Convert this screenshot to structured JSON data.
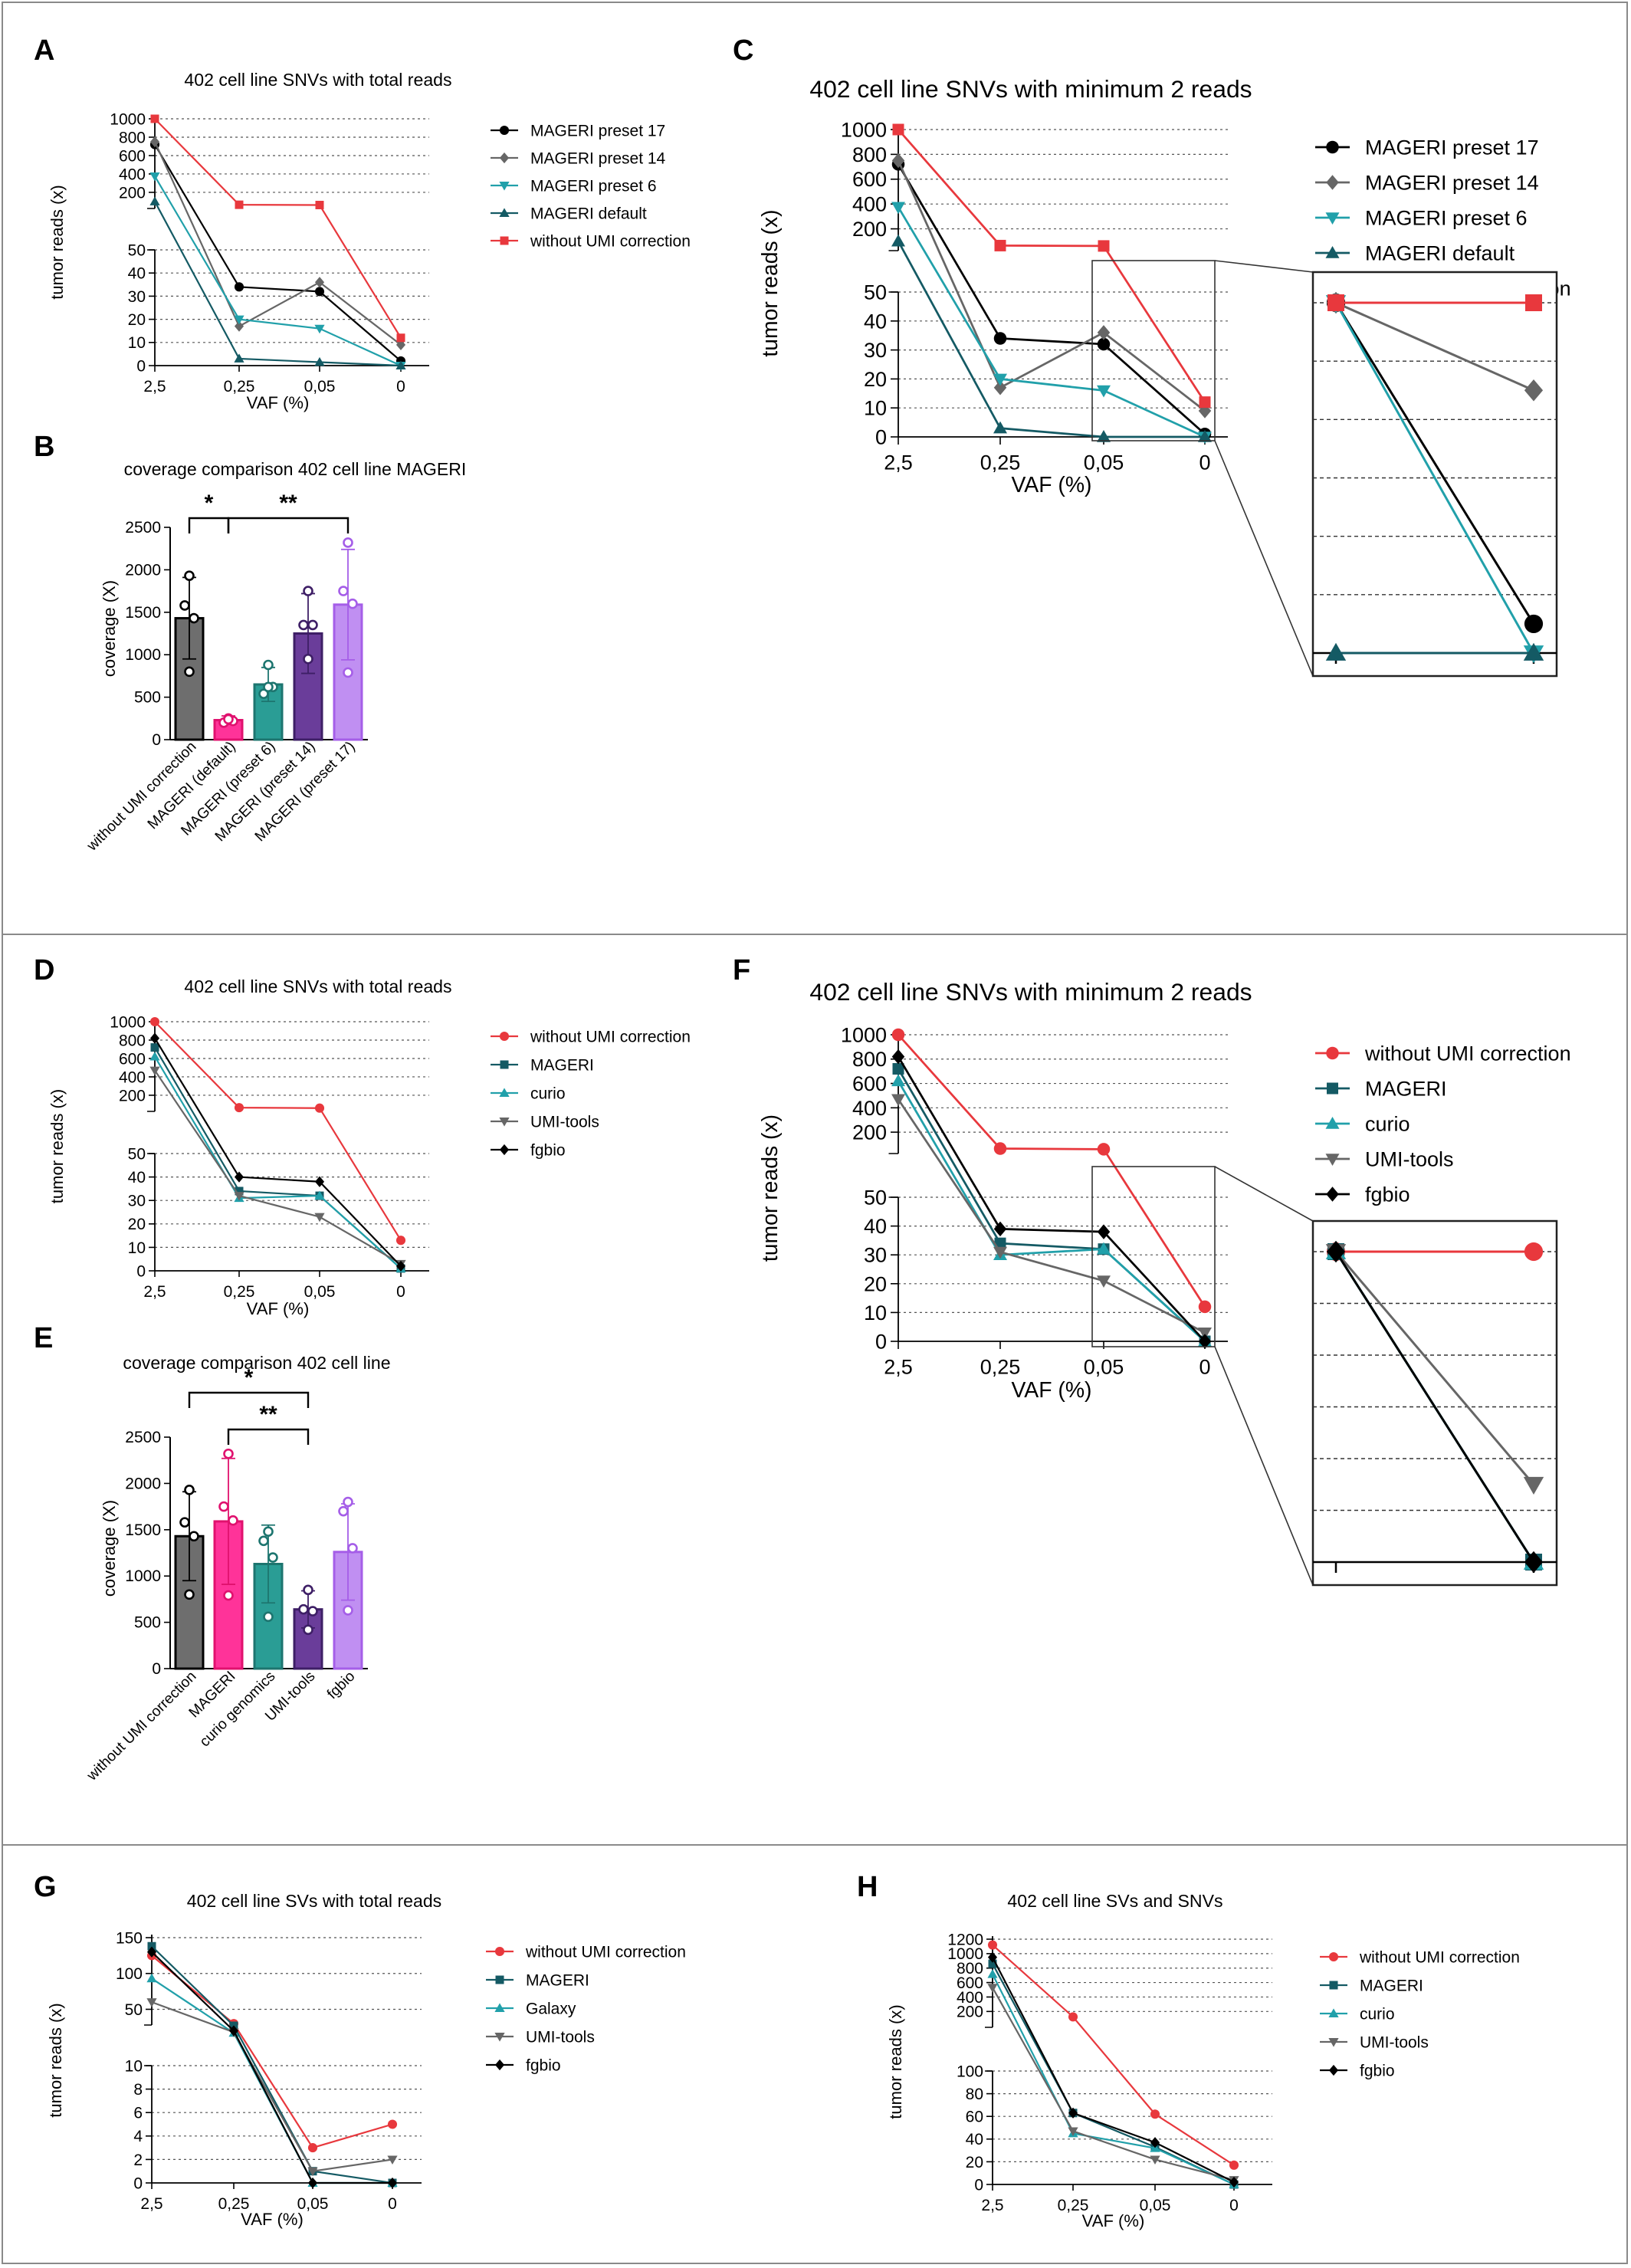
{
  "panels": {
    "A": "A",
    "B": "B",
    "C": "C",
    "D": "D",
    "E": "E",
    "F": "F",
    "G": "G",
    "H": "H"
  },
  "chart_data": [
    {
      "id": "A",
      "type": "line",
      "title": "402 cell line SNVs with total reads",
      "xlabel": "VAF (%)",
      "ylabel": "tumor reads (x)",
      "categories": [
        "2,5",
        "0,25",
        "0,05",
        "0"
      ],
      "y_axis_broken": true,
      "lower_ticks": [
        "0",
        "10",
        "20",
        "30",
        "40",
        "50"
      ],
      "upper_ticks": [
        "200",
        "400",
        "600",
        "800",
        "1000"
      ],
      "series": [
        {
          "name": "MAGERI preset 17",
          "color": "#000000",
          "marker": "circle",
          "values": [
            720,
            34,
            32,
            2
          ]
        },
        {
          "name": "MAGERI preset 14",
          "color": "#666666",
          "marker": "diamond",
          "values": [
            750,
            17,
            36,
            9
          ]
        },
        {
          "name": "MAGERI preset 6",
          "color": "#21a0aa",
          "marker": "triangle-down",
          "values": [
            375,
            20,
            16,
            0
          ]
        },
        {
          "name": "MAGERI default",
          "color": "#145a64",
          "marker": "triangle-up",
          "values": [
            100,
            3,
            1.5,
            0
          ]
        },
        {
          "name": "without UMI correction",
          "color": "#e8383d",
          "marker": "square",
          "values": [
            1000,
            65,
            62,
            12
          ]
        }
      ]
    },
    {
      "id": "B",
      "type": "bar",
      "title": "coverage comparison 402 cell line MAGERI",
      "ylabel": "coverage (X)",
      "yticks": [
        "0",
        "500",
        "1000",
        "1500",
        "2000",
        "2500"
      ],
      "ylim": [
        0,
        2500
      ],
      "categories": [
        "without UMI correction",
        "MAGERI (default)",
        "MAGERI (preset 6)",
        "MAGERI (preset 14)",
        "MAGERI (preset 17)"
      ],
      "values": [
        1430,
        230,
        650,
        1250,
        1590
      ],
      "errors": [
        480,
        50,
        200,
        470,
        650
      ],
      "points": [
        [
          1930,
          1580,
          1430,
          800
        ],
        [
          250,
          200,
          220,
          240
        ],
        [
          880,
          540,
          620,
          620
        ],
        [
          1750,
          1350,
          1350,
          950
        ],
        [
          2320,
          1750,
          1600,
          790
        ]
      ],
      "colors": [
        "#6e6e6e",
        "#ff3399",
        "#2a9d95",
        "#6a3d9a",
        "#c08ff2"
      ],
      "edge_colors": [
        "#000000",
        "#e0116e",
        "#1d756f",
        "#3e1f66",
        "#a55ee8"
      ],
      "significance": [
        {
          "label": "*",
          "from": 0,
          "to": 1
        },
        {
          "label": "**",
          "from": 1,
          "to": 4
        }
      ]
    },
    {
      "id": "C",
      "type": "line",
      "title": "402 cell line SNVs with minimum 2 reads",
      "xlabel": "VAF (%)",
      "ylabel": "tumor reads (x)",
      "categories": [
        "2,5",
        "0,25",
        "0,05",
        "0"
      ],
      "y_axis_broken": true,
      "lower_ticks": [
        "0",
        "10",
        "20",
        "30",
        "40",
        "50"
      ],
      "upper_ticks": [
        "200",
        "400",
        "600",
        "800",
        "1000"
      ],
      "series": [
        {
          "name": "MAGERI preset 17",
          "color": "#000000",
          "marker": "circle",
          "values": [
            720,
            34,
            32,
            1
          ]
        },
        {
          "name": "MAGERI preset 14",
          "color": "#666666",
          "marker": "diamond",
          "values": [
            750,
            17,
            36,
            9
          ]
        },
        {
          "name": "MAGERI preset 6",
          "color": "#21a0aa",
          "marker": "triangle-down",
          "values": [
            375,
            20,
            16,
            0
          ]
        },
        {
          "name": "MAGERI default",
          "color": "#145a64",
          "marker": "triangle-up",
          "values": [
            100,
            3,
            0,
            0
          ]
        },
        {
          "name": "without UMI correction",
          "color": "#e8383d",
          "marker": "square",
          "values": [
            1000,
            65,
            62,
            12
          ]
        }
      ]
    },
    {
      "id": "D",
      "type": "line",
      "title": "402 cell line SNVs with total reads",
      "xlabel": "VAF (%)",
      "ylabel": "tumor reads (x)",
      "categories": [
        "2,5",
        "0,25",
        "0,05",
        "0"
      ],
      "y_axis_broken": true,
      "lower_ticks": [
        "0",
        "10",
        "20",
        "30",
        "40",
        "50"
      ],
      "upper_ticks": [
        "200",
        "400",
        "600",
        "800",
        "1000"
      ],
      "series": [
        {
          "name": "without UMI correction",
          "color": "#e8383d",
          "marker": "circle",
          "values": [
            1000,
            65,
            60,
            13
          ]
        },
        {
          "name": "MAGERI",
          "color": "#145a64",
          "marker": "square",
          "values": [
            720,
            34,
            32,
            1
          ]
        },
        {
          "name": "curio",
          "color": "#21a0aa",
          "marker": "triangle-up",
          "values": [
            620,
            31,
            32,
            1
          ]
        },
        {
          "name": "UMI-tools",
          "color": "#666666",
          "marker": "triangle-down",
          "values": [
            470,
            32,
            23,
            3
          ]
        },
        {
          "name": "fgbio",
          "color": "#000000",
          "marker": "diamond",
          "values": [
            820,
            40,
            38,
            2
          ]
        }
      ]
    },
    {
      "id": "E",
      "type": "bar",
      "title": "coverage comparison 402 cell line",
      "ylabel": "coverage (X)",
      "yticks": [
        "0",
        "500",
        "1000",
        "1500",
        "2000",
        "2500"
      ],
      "ylim": [
        0,
        2500
      ],
      "categories": [
        "without UMI correction",
        "MAGERI",
        "curio genomics",
        "UMI-tools",
        "fgbio"
      ],
      "values": [
        1430,
        1590,
        1130,
        640,
        1260
      ],
      "errors": [
        480,
        680,
        420,
        200,
        520
      ],
      "points": [
        [
          1930,
          1580,
          1430,
          800
        ],
        [
          2320,
          1750,
          1600,
          790
        ],
        [
          1480,
          1380,
          1200,
          560
        ],
        [
          850,
          640,
          620,
          420
        ],
        [
          1800,
          1700,
          1300,
          630
        ]
      ],
      "colors": [
        "#6e6e6e",
        "#ff3399",
        "#2a9d95",
        "#6a3d9a",
        "#c08ff2"
      ],
      "edge_colors": [
        "#000000",
        "#e0116e",
        "#1d756f",
        "#3e1f66",
        "#a55ee8"
      ],
      "significance": [
        {
          "label": "*",
          "from": 0,
          "to": 3
        },
        {
          "label": "**",
          "from": 1,
          "to": 3
        }
      ]
    },
    {
      "id": "F",
      "type": "line",
      "title": "402 cell line SNVs with minimum 2 reads",
      "xlabel": "VAF (%)",
      "ylabel": "tumor reads (x)",
      "categories": [
        "2,5",
        "0,25",
        "0,05",
        "0"
      ],
      "y_axis_broken": true,
      "lower_ticks": [
        "0",
        "10",
        "20",
        "30",
        "40",
        "50"
      ],
      "upper_ticks": [
        "200",
        "400",
        "600",
        "800",
        "1000"
      ],
      "series": [
        {
          "name": "without UMI correction",
          "color": "#e8383d",
          "marker": "circle",
          "values": [
            1000,
            65,
            60,
            12
          ]
        },
        {
          "name": "MAGERI",
          "color": "#145a64",
          "marker": "square",
          "values": [
            720,
            34,
            32,
            0
          ]
        },
        {
          "name": "curio",
          "color": "#21a0aa",
          "marker": "triangle-up",
          "values": [
            620,
            30,
            32,
            0
          ]
        },
        {
          "name": "UMI-tools",
          "color": "#666666",
          "marker": "triangle-down",
          "values": [
            470,
            31,
            21,
            3
          ]
        },
        {
          "name": "fgbio",
          "color": "#000000",
          "marker": "diamond",
          "values": [
            820,
            39,
            38,
            0
          ]
        }
      ]
    },
    {
      "id": "G",
      "type": "line",
      "title": "402 cell line SVs with total reads",
      "xlabel": "VAF (%)",
      "ylabel": "tumor reads (x)",
      "categories": [
        "2,5",
        "0,25",
        "0,05",
        "0"
      ],
      "y_axis_broken": true,
      "lower_ticks": [
        "0",
        "2",
        "4",
        "6",
        "8",
        "10"
      ],
      "upper_ticks": [
        "50",
        "100",
        "150"
      ],
      "series": [
        {
          "name": "without UMI correction",
          "color": "#e8383d",
          "marker": "circle",
          "values": [
            125,
            30,
            3,
            5
          ]
        },
        {
          "name": "MAGERI",
          "color": "#145a64",
          "marker": "square",
          "values": [
            138,
            27,
            1,
            0
          ]
        },
        {
          "name": "Galaxy",
          "color": "#21a0aa",
          "marker": "triangle-up",
          "values": [
            93,
            17,
            0,
            0
          ]
        },
        {
          "name": "UMI-tools",
          "color": "#666666",
          "marker": "triangle-down",
          "values": [
            60,
            18,
            1,
            2
          ]
        },
        {
          "name": "fgbio",
          "color": "#000000",
          "marker": "diamond",
          "values": [
            130,
            20,
            0,
            0
          ]
        }
      ]
    },
    {
      "id": "H",
      "type": "line",
      "title": "402 cell line SVs and SNVs",
      "xlabel": "VAF (%)",
      "ylabel": "tumor reads (x)",
      "categories": [
        "2,5",
        "0,25",
        "0,05",
        "0"
      ],
      "y_axis_broken": true,
      "lower_ticks": [
        "0",
        "20",
        "40",
        "60",
        "80",
        "100"
      ],
      "upper_ticks": [
        "200",
        "400",
        "600",
        "800",
        "1000",
        "1200"
      ],
      "series": [
        {
          "name": "without UMI correction",
          "color": "#e8383d",
          "marker": "circle",
          "values": [
            1120,
            125,
            62,
            17
          ]
        },
        {
          "name": "MAGERI",
          "color": "#145a64",
          "marker": "square",
          "values": [
            860,
            63,
            33,
            0
          ]
        },
        {
          "name": "curio",
          "color": "#21a0aa",
          "marker": "triangle-up",
          "values": [
            715,
            45,
            32,
            0
          ]
        },
        {
          "name": "UMI-tools",
          "color": "#666666",
          "marker": "triangle-down",
          "values": [
            530,
            47,
            22,
            4
          ]
        },
        {
          "name": "fgbio",
          "color": "#000000",
          "marker": "diamond",
          "values": [
            950,
            63,
            37,
            2
          ]
        }
      ]
    }
  ]
}
